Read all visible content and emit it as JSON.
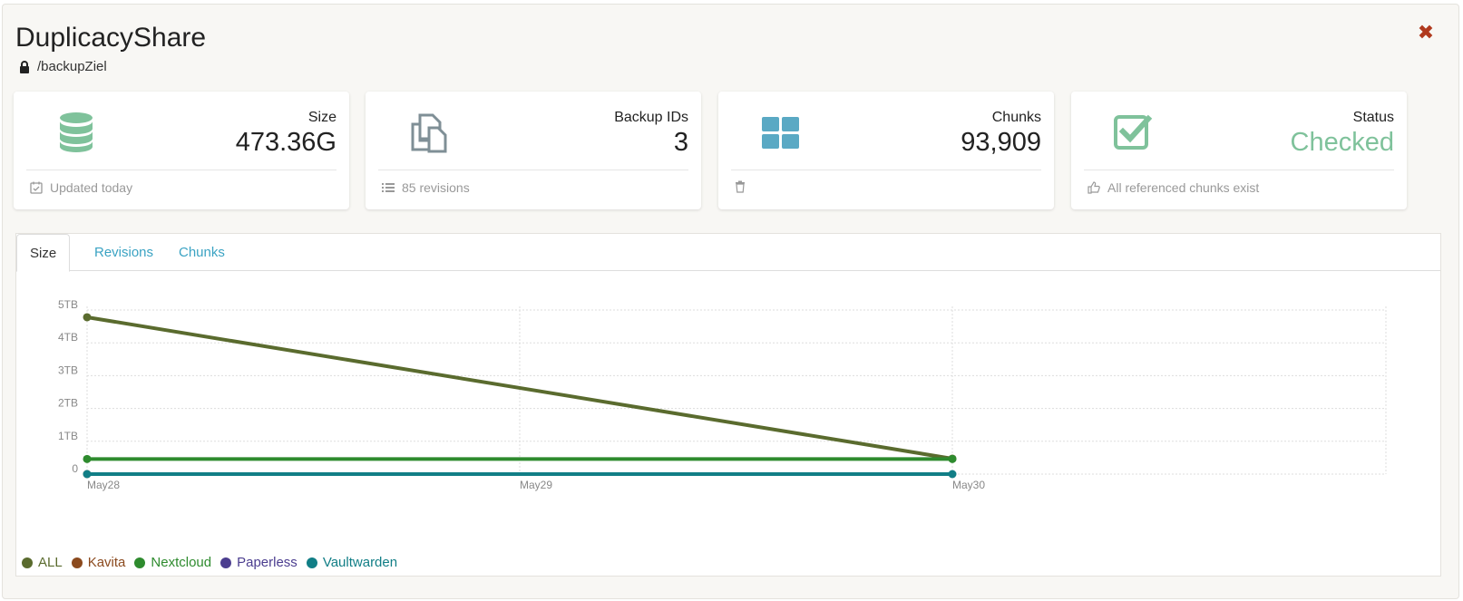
{
  "header": {
    "title": "DuplicacyShare",
    "path": "/backupZiel",
    "close_label": "✖"
  },
  "cards": [
    {
      "label": "Size",
      "value": "473.36G",
      "footer": "Updated today",
      "icon": "database-icon",
      "icon_color": "#7fc29b"
    },
    {
      "label": "Backup IDs",
      "value": "3",
      "footer": "85 revisions",
      "icon": "copy-files-icon",
      "icon_color": "#7f8f96"
    },
    {
      "label": "Chunks",
      "value": "93,909",
      "footer": "",
      "icon": "grid-icon",
      "icon_color": "#5aa9c4"
    },
    {
      "label": "Status",
      "value": "Checked",
      "footer": "All referenced chunks exist",
      "icon": "check-square-icon",
      "icon_color": "#7fc29b",
      "value_color": "#7fc29b"
    }
  ],
  "tabs": [
    {
      "label": "Size",
      "active": true
    },
    {
      "label": "Revisions",
      "active": false
    },
    {
      "label": "Chunks",
      "active": false
    }
  ],
  "chart_data": {
    "type": "line",
    "x": [
      "May28",
      "May29",
      "May30"
    ],
    "y_ticks": [
      "0",
      "1TB",
      "2TB",
      "3TB",
      "4TB",
      "5TB"
    ],
    "ylim": [
      0,
      5
    ],
    "y_unit": "TB",
    "grid": true,
    "legend_position": "bottom-left",
    "series": [
      {
        "name": "ALL",
        "color": "#5a6b2e",
        "points": [
          [
            0,
            4.78
          ],
          [
            2,
            0.47
          ]
        ]
      },
      {
        "name": "Kavita",
        "color": "#8b4a1e",
        "points": [
          [
            0,
            0.0
          ]
        ]
      },
      {
        "name": "Nextcloud",
        "color": "#2e8b2e",
        "points": [
          [
            0,
            0.46
          ],
          [
            2,
            0.46
          ]
        ]
      },
      {
        "name": "Paperless",
        "color": "#4b3d8f",
        "points": []
      },
      {
        "name": "Vaultwarden",
        "color": "#117e86",
        "points": [
          [
            0,
            0.0
          ],
          [
            2,
            0.0
          ]
        ]
      }
    ]
  }
}
